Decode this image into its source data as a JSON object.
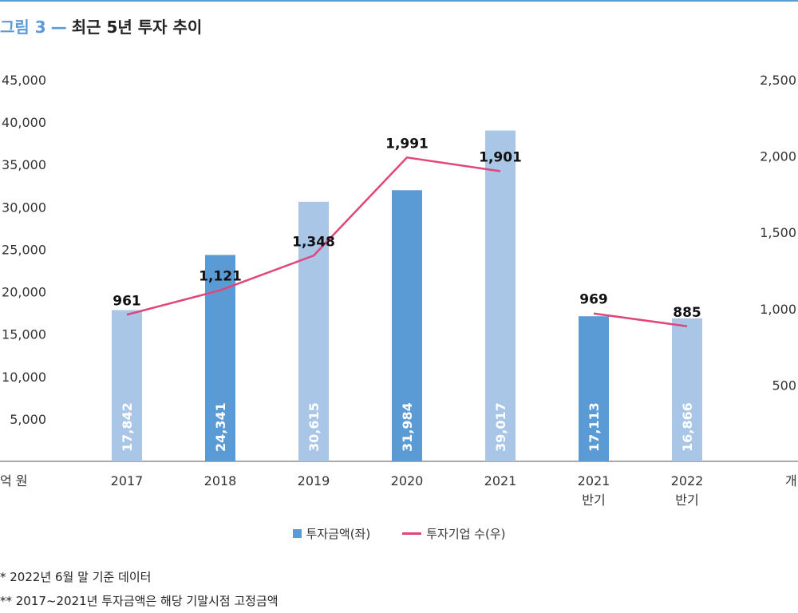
{
  "header": {
    "figure_label": "그림 3",
    "title": "최근 5년 투자 추이"
  },
  "chart_data": {
    "type": "bar",
    "categories": [
      "2017",
      "2018",
      "2019",
      "2020",
      "2021",
      "2021\n반기",
      "2022\n반기"
    ],
    "series": [
      {
        "name": "투자금액(좌)",
        "axis": "left",
        "values": [
          17842,
          24341,
          30615,
          31984,
          39017,
          17113,
          16866
        ],
        "labels": [
          "17,842",
          "24,341",
          "30,615",
          "31,984",
          "39,017",
          "17,113",
          "16,866"
        ],
        "colors": [
          "#a9c6e6",
          "#5b9bd5",
          "#a9c6e6",
          "#5b9bd5",
          "#a9c6e6",
          "#5b9bd5",
          "#a9c6e6"
        ]
      },
      {
        "name": "투자기업 수(우)",
        "axis": "right",
        "type": "line",
        "color": "#e0457b",
        "segments": [
          [
            0,
            1,
            2,
            3,
            4
          ],
          [
            5,
            6
          ]
        ],
        "values": [
          961,
          1121,
          1348,
          1991,
          1901,
          969,
          885
        ],
        "labels": [
          "961",
          "1,121",
          "1,348",
          "1,991",
          "1,901",
          "969",
          "885"
        ]
      }
    ],
    "left_axis": {
      "label": "억 원",
      "ylim": [
        0,
        45000
      ],
      "ticks": [
        5000,
        10000,
        15000,
        20000,
        25000,
        30000,
        35000,
        40000,
        45000
      ],
      "tick_labels": [
        "5,000",
        "10,000",
        "15,000",
        "20,000",
        "25,000",
        "30,000",
        "35,000",
        "40,000",
        "45,000"
      ]
    },
    "right_axis": {
      "label": "개",
      "ylim": [
        0,
        2500
      ],
      "ticks": [
        500,
        1000,
        1500,
        2000,
        2500
      ],
      "tick_labels": [
        "500",
        "1,000",
        "1,500",
        "2,000",
        "2,500"
      ]
    },
    "grid": false,
    "legend_position": "bottom-center"
  },
  "legend": {
    "bar_label": "투자금액(좌)",
    "line_label": "투자기업 수(우)"
  },
  "notes": [
    "*   2022년 6월 말 기준 데이터",
    "** 2017~2021년 투자금액은 해당 기말시점 고정금액"
  ]
}
